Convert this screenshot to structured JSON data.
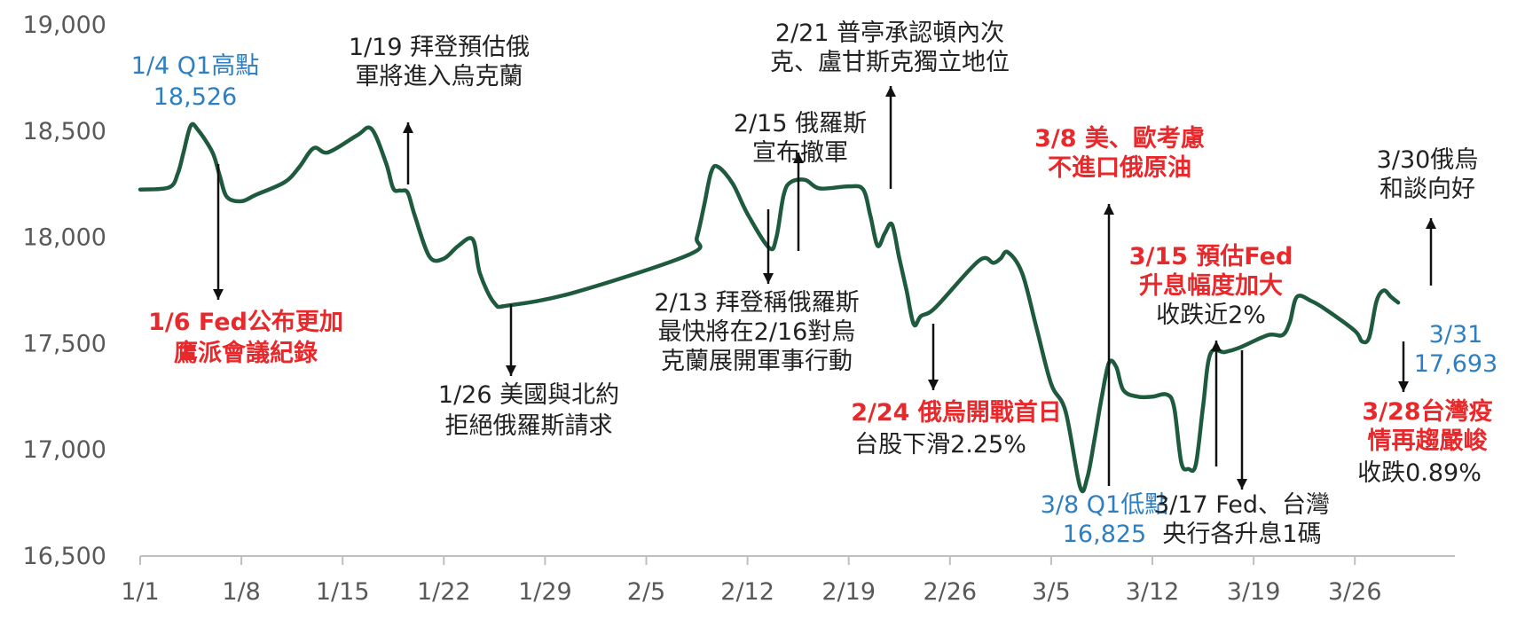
{
  "chart_data": {
    "type": "line",
    "title": "",
    "xlabel": "",
    "ylabel": "",
    "ylim": [
      16500,
      19000
    ],
    "yticks": [
      {
        "value": 19000,
        "label": "19,000"
      },
      {
        "value": 18500,
        "label": "18,500"
      },
      {
        "value": 18000,
        "label": "18,000"
      },
      {
        "value": 17500,
        "label": "17,500"
      },
      {
        "value": 17000,
        "label": "17,000"
      },
      {
        "value": 16500,
        "label": "16,500"
      }
    ],
    "xlim": [
      0,
      89
    ],
    "xticks": [
      {
        "value": 0,
        "label": "1/1"
      },
      {
        "value": 7,
        "label": "1/8"
      },
      {
        "value": 14,
        "label": "1/15"
      },
      {
        "value": 21,
        "label": "1/22"
      },
      {
        "value": 28,
        "label": "1/29"
      },
      {
        "value": 35,
        "label": "2/5"
      },
      {
        "value": 42,
        "label": "2/12"
      },
      {
        "value": 49,
        "label": "2/19"
      },
      {
        "value": 56,
        "label": "2/26"
      },
      {
        "value": 63,
        "label": "3/5"
      },
      {
        "value": 70,
        "label": "3/12"
      },
      {
        "value": 77,
        "label": "3/19"
      },
      {
        "value": 84,
        "label": "3/26"
      }
    ],
    "grid": false,
    "series": [
      {
        "name": "",
        "color": "#1e5a3d",
        "points": [
          [
            0,
            18225
          ],
          [
            2,
            18235
          ],
          [
            2.6,
            18300
          ],
          [
            3,
            18400
          ],
          [
            3.5,
            18526
          ],
          [
            4,
            18505
          ],
          [
            5,
            18400
          ],
          [
            5.5,
            18290
          ],
          [
            6,
            18190
          ],
          [
            7,
            18170
          ],
          [
            8,
            18200
          ],
          [
            10,
            18260
          ],
          [
            11,
            18330
          ],
          [
            12,
            18420
          ],
          [
            13,
            18400
          ],
          [
            15,
            18480
          ],
          [
            16,
            18510
          ],
          [
            17,
            18350
          ],
          [
            17.5,
            18230
          ],
          [
            18,
            18220
          ],
          [
            18.5,
            18210
          ],
          [
            19,
            18100
          ],
          [
            20,
            17910
          ],
          [
            21,
            17900
          ],
          [
            22,
            17960
          ],
          [
            23,
            17990
          ],
          [
            23.5,
            17830
          ],
          [
            24.5,
            17690
          ],
          [
            25.5,
            17680
          ],
          [
            30,
            17740
          ],
          [
            38,
            17920
          ],
          [
            38.5,
            18000
          ],
          [
            39,
            18150
          ],
          [
            39.5,
            18310
          ],
          [
            40,
            18330
          ],
          [
            41,
            18250
          ],
          [
            42,
            18110
          ],
          [
            43.5,
            17950
          ],
          [
            44,
            18000
          ],
          [
            44.5,
            18200
          ],
          [
            45,
            18260
          ],
          [
            46,
            18270
          ],
          [
            47,
            18230
          ],
          [
            49,
            18240
          ],
          [
            50,
            18225
          ],
          [
            50.5,
            18100
          ],
          [
            51,
            17960
          ],
          [
            51.5,
            18020
          ],
          [
            52,
            18060
          ],
          [
            52.5,
            17900
          ],
          [
            53,
            17750
          ],
          [
            53.5,
            17590
          ],
          [
            54,
            17630
          ],
          [
            55,
            17670
          ],
          [
            58,
            17890
          ],
          [
            59,
            17880
          ],
          [
            59.5,
            17900
          ],
          [
            60,
            17930
          ],
          [
            61,
            17830
          ],
          [
            62,
            17570
          ],
          [
            63,
            17310
          ],
          [
            64,
            17180
          ],
          [
            65,
            16825
          ],
          [
            65.5,
            16870
          ],
          [
            66,
            17050
          ],
          [
            66.5,
            17250
          ],
          [
            67,
            17410
          ],
          [
            67.5,
            17390
          ],
          [
            68,
            17280
          ],
          [
            69,
            17250
          ],
          [
            70,
            17250
          ],
          [
            71,
            17260
          ],
          [
            71.5,
            17200
          ],
          [
            72,
            16940
          ],
          [
            72.5,
            16910
          ],
          [
            73,
            16930
          ],
          [
            73.5,
            17200
          ],
          [
            74,
            17450
          ],
          [
            75,
            17460
          ],
          [
            76,
            17480
          ],
          [
            78,
            17540
          ],
          [
            79,
            17540
          ],
          [
            79.5,
            17600
          ],
          [
            80,
            17720
          ],
          [
            81,
            17700
          ],
          [
            82,
            17660
          ],
          [
            84,
            17560
          ],
          [
            84.5,
            17510
          ],
          [
            85,
            17530
          ],
          [
            85.5,
            17700
          ],
          [
            86,
            17750
          ],
          [
            86.5,
            17720
          ],
          [
            87,
            17693
          ]
        ]
      }
    ],
    "annotations": [
      {
        "lines": [
          "1/4 Q1高點",
          "18,526"
        ],
        "color": "blue"
      },
      {
        "lines": [
          "1/6 Fed公布更加",
          "鷹派會議紀錄"
        ],
        "color": "red"
      },
      {
        "lines": [
          "1/19 拜登預估俄",
          "軍將進入烏克蘭"
        ],
        "color": "black"
      },
      {
        "lines": [
          "1/26 美國與北約",
          "拒絕俄羅斯請求"
        ],
        "color": "black"
      },
      {
        "lines": [
          "2/13 拜登稱俄羅斯",
          "最快將在2/16對烏",
          "克蘭展開軍事行動"
        ],
        "color": "black"
      },
      {
        "lines": [
          "2/15 俄羅斯",
          "宣布撤軍"
        ],
        "color": "black"
      },
      {
        "lines": [
          "2/21 普亭承認頓內次",
          "克、盧甘斯克獨立地位"
        ],
        "color": "black"
      },
      {
        "lines": [
          "2/24 俄烏開戰首日"
        ],
        "color": "red"
      },
      {
        "lines": [
          "台股下滑2.25%"
        ],
        "color": "black"
      },
      {
        "lines": [
          "3/8 美、歐考慮",
          "不進口俄原油"
        ],
        "color": "red"
      },
      {
        "lines": [
          "3/8 Q1低點",
          "16,825"
        ],
        "color": "blue"
      },
      {
        "lines": [
          "3/15 預估Fed",
          "升息幅度加大"
        ],
        "color": "red"
      },
      {
        "lines": [
          "收跌近2%"
        ],
        "color": "black"
      },
      {
        "lines": [
          "3/17 Fed、台灣",
          "央行各升息1碼"
        ],
        "color": "black"
      },
      {
        "lines": [
          "3/30俄烏",
          "和談向好"
        ],
        "color": "black"
      },
      {
        "lines": [
          "3/28台灣疫",
          "情再趨嚴峻"
        ],
        "color": "red"
      },
      {
        "lines": [
          "收跌0.89%"
        ],
        "color": "black"
      },
      {
        "lines": [
          "3/31",
          "17,693"
        ],
        "color": "blue"
      }
    ]
  }
}
